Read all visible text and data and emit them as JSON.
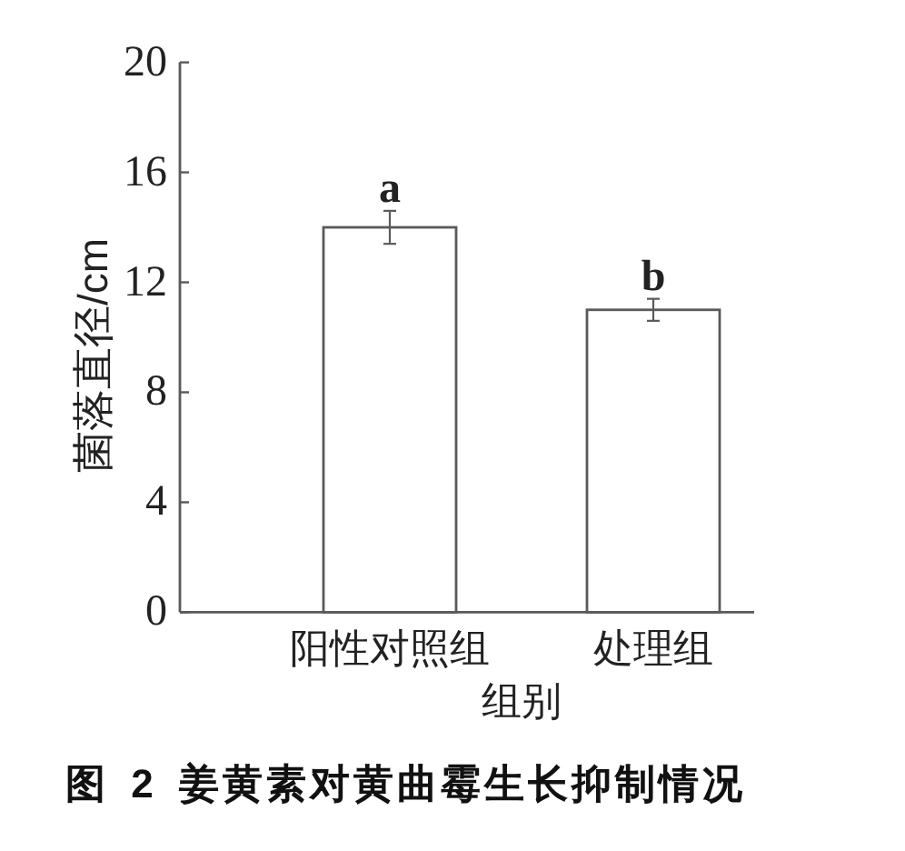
{
  "chart_data": {
    "type": "bar",
    "title": "图 2 姜黄素对黄曲霉生长抑制情况",
    "xlabel": "组别",
    "ylabel": "菌落直径/cm",
    "categories": [
      "阳性对照组",
      "处理组"
    ],
    "values": [
      14.0,
      11.0
    ],
    "errors": [
      0.6,
      0.4
    ],
    "color": "#ffffff",
    "ylim": [
      0,
      20
    ],
    "yticks": [
      0,
      4,
      8,
      12,
      16,
      20
    ],
    "annotations": [
      {
        "text": "a",
        "x": "阳性对照组",
        "y": 14.6
      },
      {
        "text": "b",
        "x": "处理组",
        "y": 11.4
      }
    ]
  }
}
